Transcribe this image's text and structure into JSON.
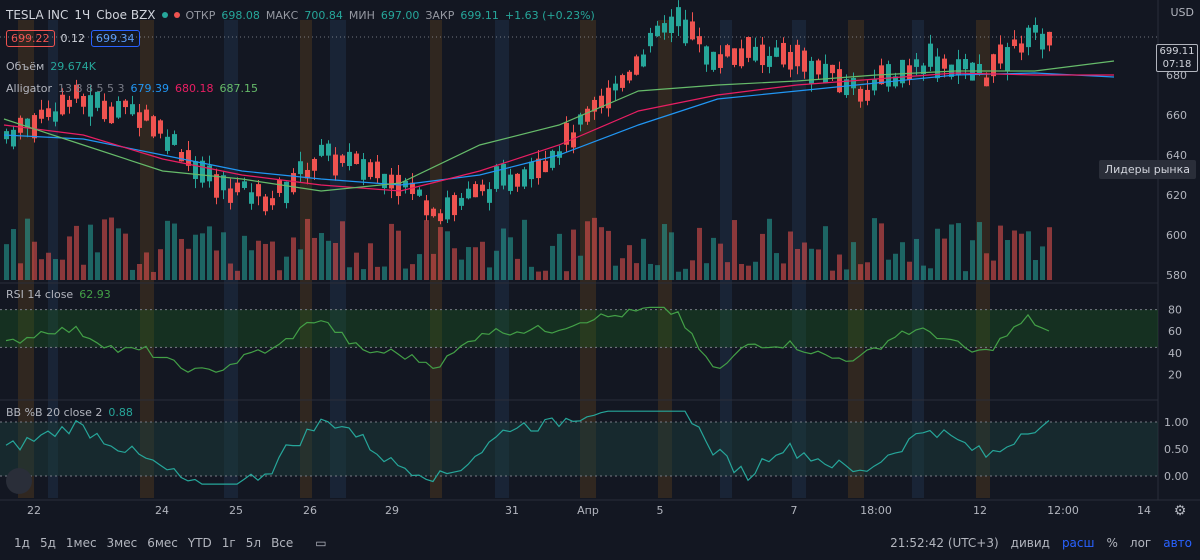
{
  "header": {
    "symbol": "TESLA INC",
    "interval": "1Ч",
    "exchange": "Cboe BZX",
    "ohlc": [
      {
        "label": "ОТКР",
        "value": "698.08"
      },
      {
        "label": "МАКС",
        "value": "700.84"
      },
      {
        "label": "МИН",
        "value": "697.00"
      },
      {
        "label": "ЗАКР",
        "value": "699.11"
      }
    ],
    "change": "+1.63 (+0.23%)",
    "currency": "USD"
  },
  "quote": {
    "bid": "699.22",
    "spread": "0.12",
    "ask": "699.34"
  },
  "legends": {
    "volume_label": "Объём",
    "volume_value": "29.674K",
    "alligator_label": "Alligator",
    "alligator_params": "13 8 8 5 5 3",
    "alligator_values": [
      "679.39",
      "680.18",
      "687.15"
    ],
    "rsi_label": "RSI 14 close",
    "rsi_value": "62.93",
    "bb_label": "BB %B 20 close 2",
    "bb_value": "0.88"
  },
  "price_tag": {
    "price": "699.11",
    "time": "07:18"
  },
  "badge": "Лидеры рынка",
  "colors": {
    "up": "#26a69a",
    "down": "#ef5350",
    "jaw": "#2196f3",
    "teeth": "#e91e63",
    "lips": "#66bb6a",
    "rsi": "#43a047",
    "bb": "#26a69a",
    "session_orange": "#3d2f1f",
    "session_blue": "#1c2b3f"
  },
  "price_axis": {
    "ticks": [
      680,
      660,
      640,
      620,
      600,
      580
    ]
  },
  "rsi_axis": {
    "ticks": [
      80,
      60,
      40,
      20
    ]
  },
  "bb_axis": {
    "ticks": [
      "1.00",
      "0.50",
      "0.00"
    ]
  },
  "time_axis": [
    {
      "label": "22"
    },
    {
      "label": "24"
    },
    {
      "label": "25"
    },
    {
      "label": "26"
    },
    {
      "label": "29"
    },
    {
      "label": "31"
    },
    {
      "label": "Апр"
    },
    {
      "label": "5"
    },
    {
      "label": "7"
    },
    {
      "label": "18:00"
    },
    {
      "label": "12"
    },
    {
      "label": "12:00"
    },
    {
      "label": "14"
    }
  ],
  "timeframes": [
    "1д",
    "5д",
    "1мес",
    "3мес",
    "6мес",
    "YTD",
    "1г",
    "5л",
    "Все"
  ],
  "bottom_right": {
    "time": "21:52:42 (UTC+3)",
    "div": "дивид",
    "ext": "расш",
    "pct": "%",
    "log": "лог",
    "auto": "авто"
  },
  "chart_data": {
    "type": "line",
    "series": [
      {
        "name": "Alligator Jaw",
        "values": [
          650,
          648,
          640,
          632,
          628,
          625,
          630,
          640,
          655,
          668,
          672,
          676,
          680,
          681,
          679
        ]
      },
      {
        "name": "Alligator Teeth",
        "values": [
          655,
          650,
          638,
          630,
          625,
          622,
          632,
          645,
          662,
          670,
          675,
          678,
          681,
          680,
          680
        ]
      },
      {
        "name": "Alligator Lips",
        "values": [
          658,
          645,
          632,
          628,
          622,
          626,
          645,
          655,
          672,
          675,
          677,
          680,
          682,
          682,
          687
        ]
      }
    ]
  }
}
